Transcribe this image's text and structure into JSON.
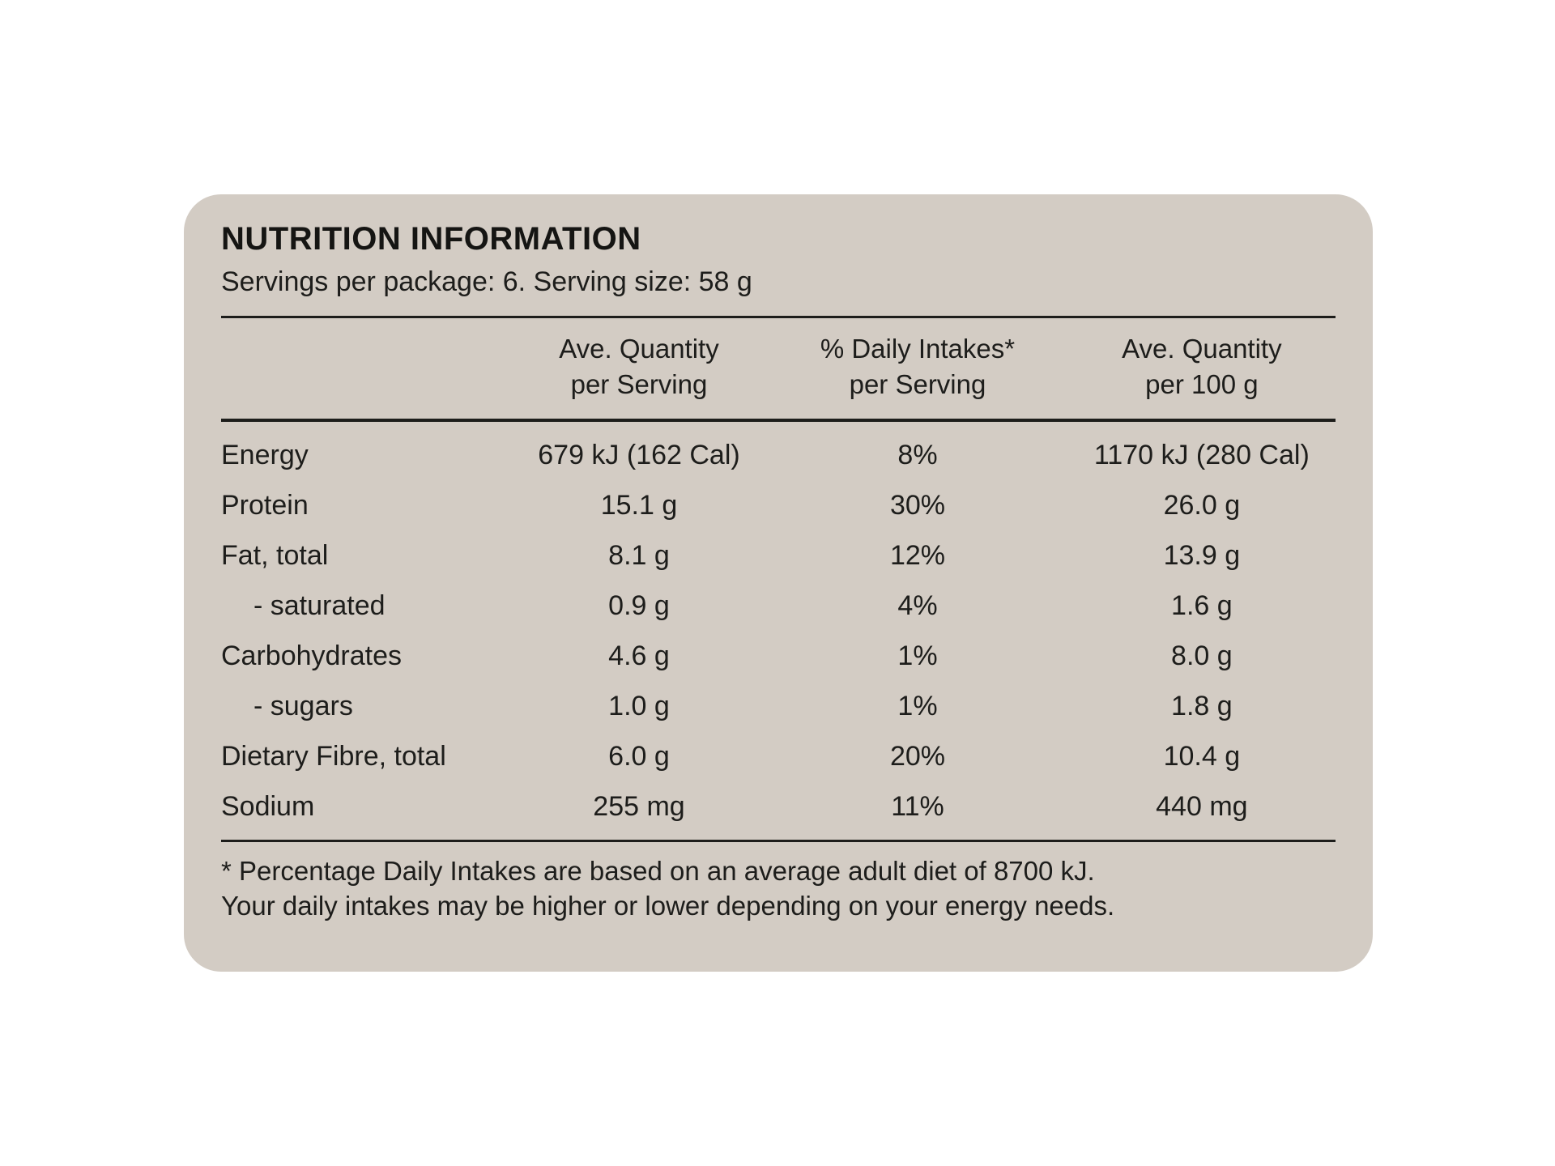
{
  "card": {
    "title": "NUTRITION INFORMATION",
    "servings_line": "Servings per package: 6. Serving size: 58 g",
    "bg_color": "#d3ccc4",
    "text_color": "#1d1d1b"
  },
  "table": {
    "headers": [
      {
        "line1": "Ave. Quantity",
        "line2": "per Serving"
      },
      {
        "line1": "% Daily Intakes*",
        "line2": "per Serving"
      },
      {
        "line1": "Ave. Quantity",
        "line2": "per 100 g"
      }
    ],
    "rows": [
      {
        "name": "Energy",
        "per_serving": "679 kJ (162 Cal)",
        "daily_intake": "8%",
        "per_100g": "1170 kJ (280 Cal)"
      },
      {
        "name": "Protein",
        "per_serving": "15.1 g",
        "daily_intake": "30%",
        "per_100g": "26.0 g"
      },
      {
        "name": "Fat, total",
        "per_serving": "8.1 g",
        "daily_intake": "12%",
        "per_100g": "13.9 g"
      },
      {
        "name": "- saturated",
        "per_serving": "0.9 g",
        "daily_intake": "4%",
        "per_100g": "1.6 g"
      },
      {
        "name": "Carbohydrates",
        "per_serving": "4.6 g",
        "daily_intake": "1%",
        "per_100g": "8.0 g"
      },
      {
        "name": "- sugars",
        "per_serving": "1.0 g",
        "daily_intake": "1%",
        "per_100g": "1.8 g"
      },
      {
        "name": "Dietary Fibre, total",
        "per_serving": "6.0 g",
        "daily_intake": "20%",
        "per_100g": "10.4 g"
      },
      {
        "name": "Sodium",
        "per_serving": "255 mg",
        "daily_intake": "11%",
        "per_100g": "440 mg"
      }
    ]
  },
  "footnote": {
    "line1": "* Percentage Daily Intakes are based on an average adult diet of 8700 kJ.",
    "line2": "Your daily intakes may be higher or lower depending on your energy needs."
  }
}
